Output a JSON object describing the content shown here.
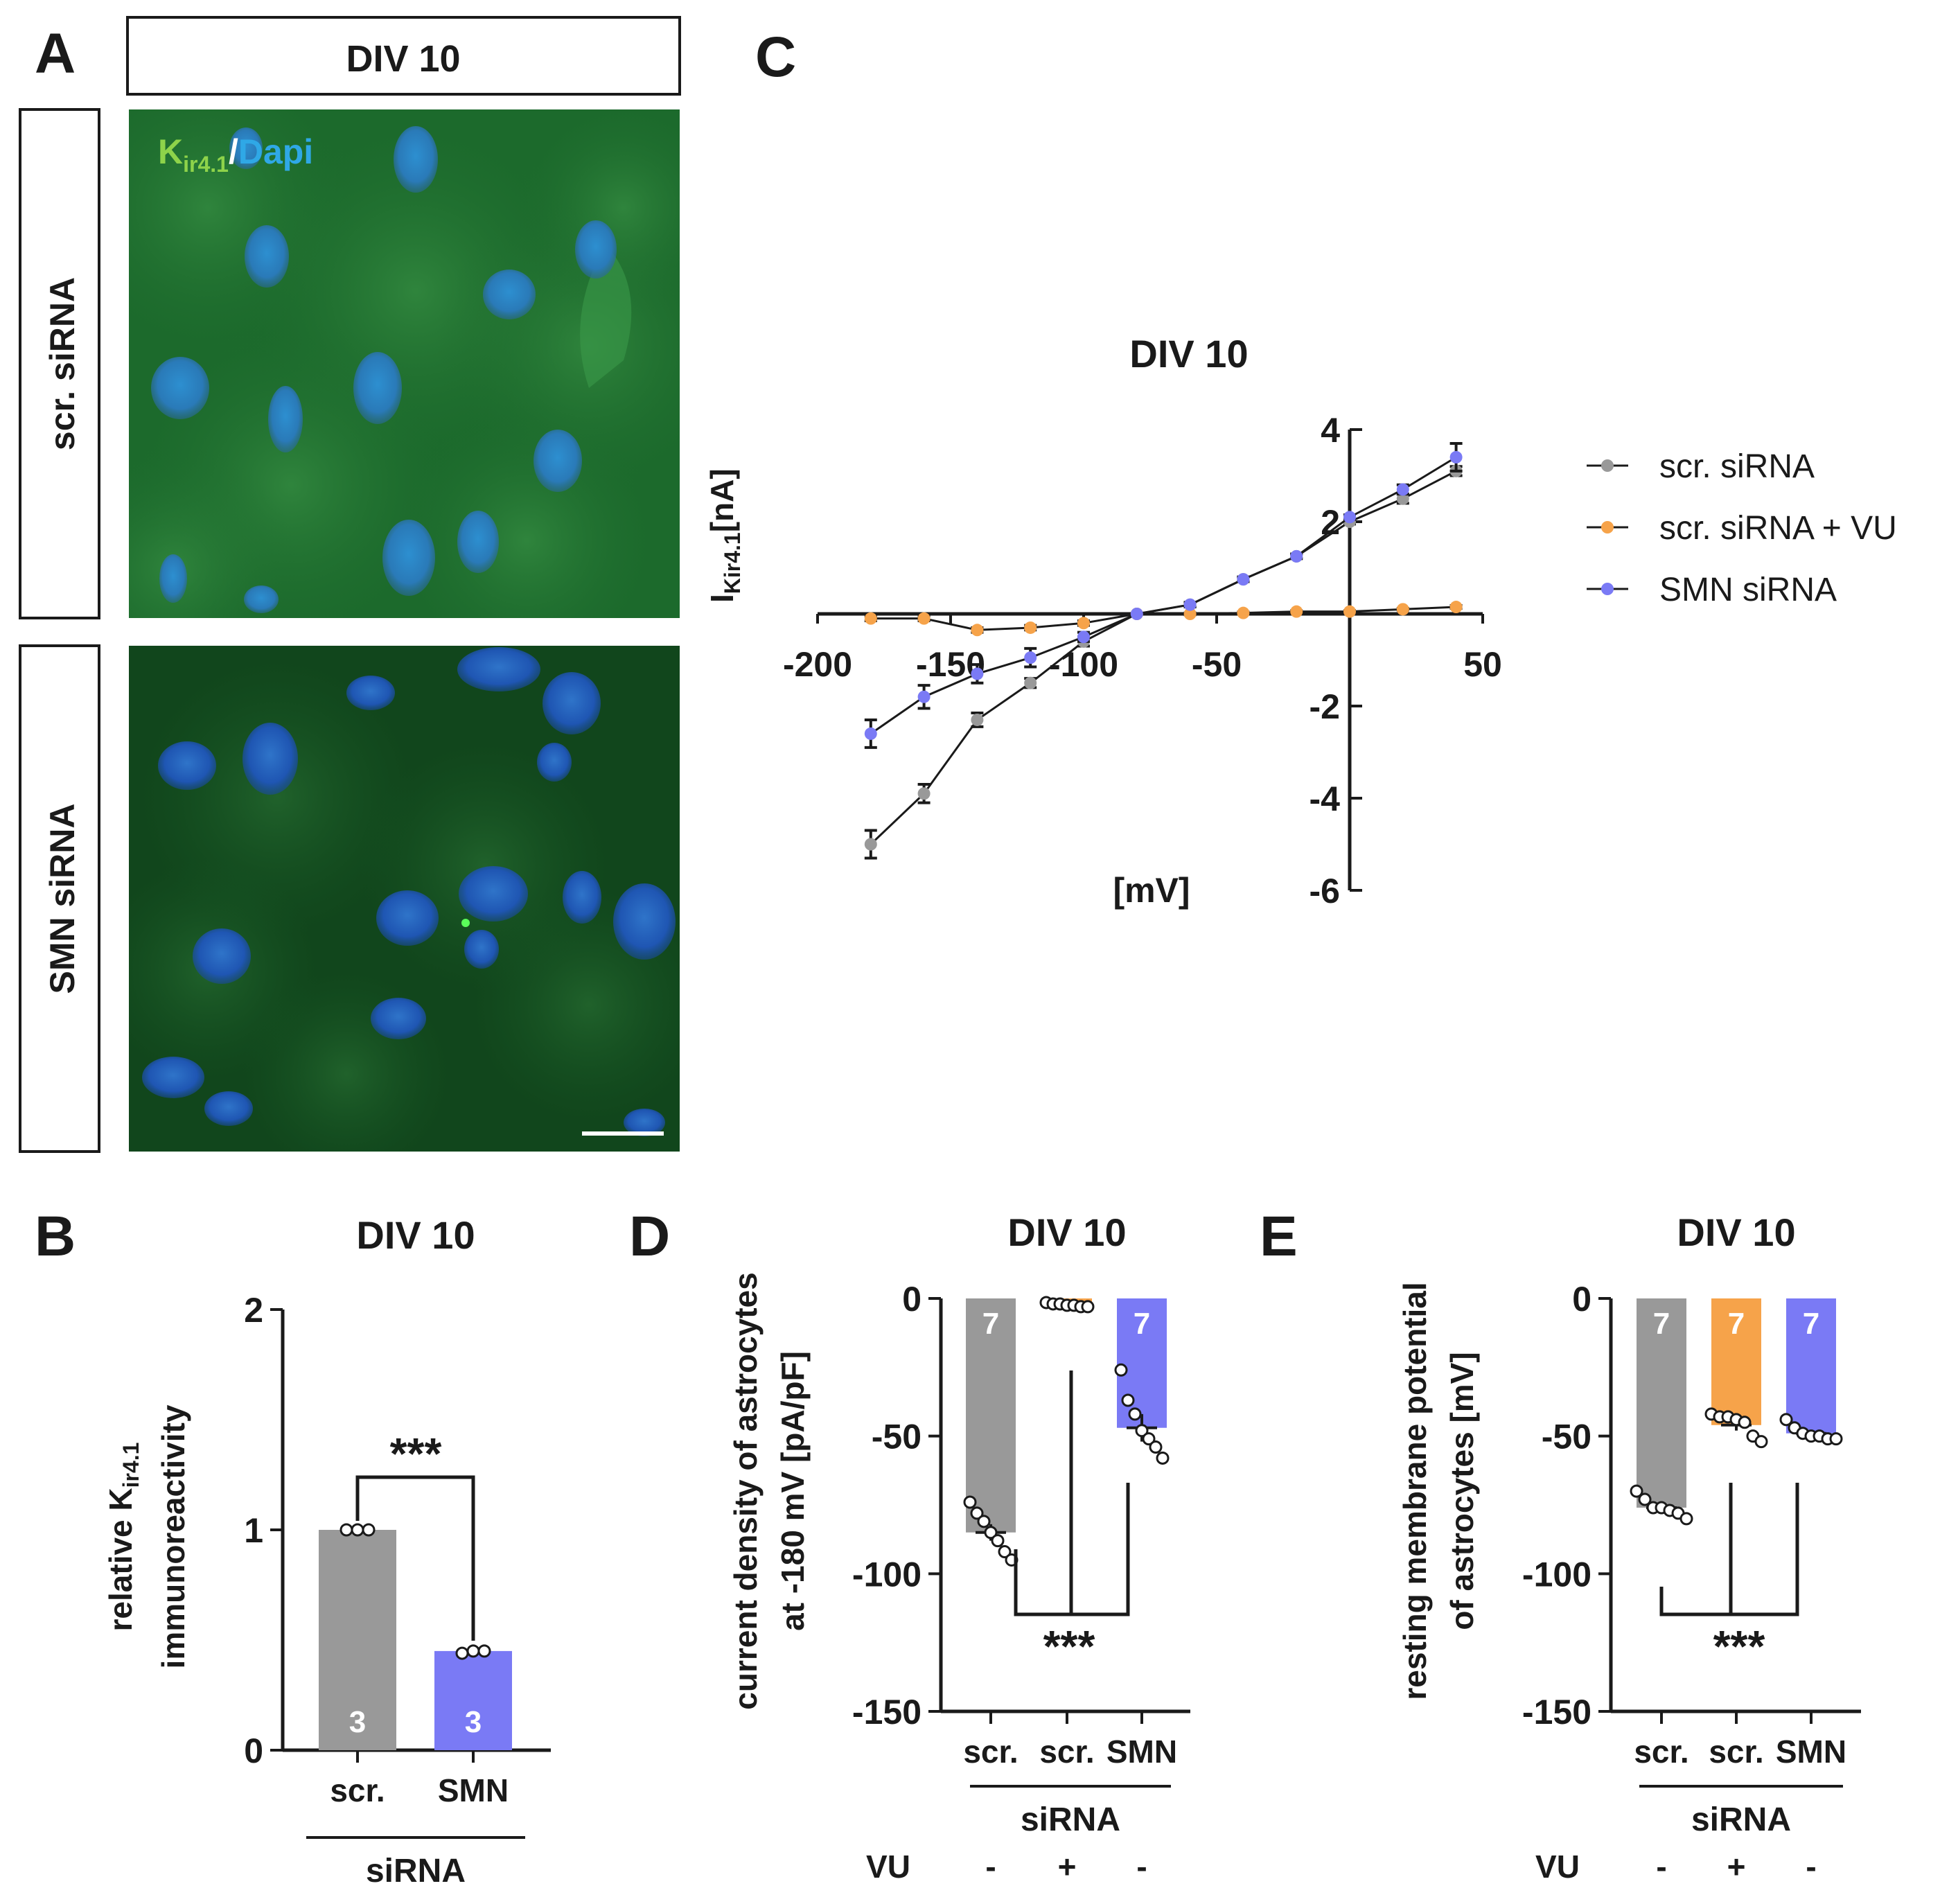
{
  "figure": {
    "panel_letters": [
      "A",
      "B",
      "C",
      "D",
      "E"
    ],
    "colors": {
      "scr": "#999999",
      "vu": "#f6a34a",
      "smn": "#7a7af5",
      "axis": "#1a1a1a"
    }
  },
  "panel_a": {
    "header": "DIV 10",
    "row_labels": [
      "scr. siRNA",
      "SMN siRNA"
    ],
    "stain_kir": "K",
    "stain_kir_sub": "ir4.1",
    "stain_sep": "/",
    "stain_dapi": "Dapi"
  },
  "chart_data": [
    {
      "id": "B",
      "type": "bar",
      "title": "DIV 10",
      "ylabel_main": "relative K",
      "ylabel_sub": "ir4.1",
      "ylabel_line2": "immunoreactivity",
      "categories": [
        "scr.",
        "SMN"
      ],
      "group_label": "siRNA",
      "values": [
        1.0,
        0.45
      ],
      "sem": [
        0.0,
        0.01
      ],
      "n": [
        "3",
        "3"
      ],
      "points": [
        [
          1.0,
          1.0,
          1.0
        ],
        [
          0.44,
          0.45,
          0.45
        ]
      ],
      "colors": [
        "#999999",
        "#7a7af5"
      ],
      "ylim": [
        0,
        2
      ],
      "yticks": [
        "0",
        "1",
        "2"
      ],
      "significance": "***"
    },
    {
      "id": "C",
      "type": "line",
      "title": "DIV 10",
      "ylabel_main": "I",
      "ylabel_sub": "Kir4.1",
      "ylabel_unit": "[nA]",
      "xlabel": "[mV]",
      "xlim": [
        -200,
        50
      ],
      "ylim": [
        -6,
        4
      ],
      "xticks": [
        "-200",
        "-150",
        "-100",
        "-50",
        "50"
      ],
      "yticks": [
        "4",
        "2",
        "-2",
        "-4",
        "-6"
      ],
      "x": [
        -180,
        -160,
        -140,
        -120,
        -100,
        -80,
        -60,
        -40,
        -20,
        0,
        20,
        40
      ],
      "series": [
        {
          "name": "scr. siRNA",
          "color": "#999999",
          "values": [
            -5.0,
            -3.9,
            -2.3,
            -1.5,
            -0.6,
            0.0,
            0.2,
            0.75,
            1.25,
            2.0,
            2.5,
            3.1
          ],
          "sem": [
            0.3,
            0.2,
            0.15,
            0.1,
            0.1,
            0.0,
            0.05,
            0.05,
            0.05,
            0.05,
            0.1,
            0.1
          ]
        },
        {
          "name": "scr. siRNA + VU",
          "color": "#f6a34a",
          "values": [
            -0.1,
            -0.1,
            -0.35,
            -0.3,
            -0.2,
            0.0,
            0.0,
            0.02,
            0.05,
            0.05,
            0.1,
            0.15
          ],
          "sem": [
            0.05,
            0.05,
            0.05,
            0.05,
            0.05,
            0.0,
            0.02,
            0.02,
            0.02,
            0.02,
            0.02,
            0.03
          ]
        },
        {
          "name": "SMN siRNA",
          "color": "#7a7af5",
          "values": [
            -2.6,
            -1.8,
            -1.3,
            -0.95,
            -0.5,
            0.0,
            0.2,
            0.75,
            1.25,
            2.1,
            2.7,
            3.4
          ],
          "sem": [
            0.3,
            0.25,
            0.2,
            0.2,
            0.1,
            0.0,
            0.05,
            0.05,
            0.05,
            0.05,
            0.1,
            0.3
          ]
        }
      ]
    },
    {
      "id": "D",
      "type": "bar",
      "title": "DIV 10",
      "ylabel_line1": "current density of astrocytes",
      "ylabel_line2": "at -180 mV [pA/pF]",
      "categories": [
        "scr.",
        "scr.",
        "SMN"
      ],
      "group_label": "siRNA",
      "vu_label": "VU",
      "vu": [
        "-",
        "+",
        "-"
      ],
      "values": [
        -85,
        -2,
        -47
      ],
      "sem": [
        3,
        0.5,
        5
      ],
      "n": [
        "7",
        "",
        "7"
      ],
      "points": [
        [
          -74,
          -78,
          -81,
          -85,
          -88,
          -92,
          -95
        ],
        [
          -1.5,
          -2,
          -2,
          -2.5,
          -2.5,
          -3,
          -3
        ],
        [
          -26,
          -37,
          -42,
          -48,
          -51,
          -54,
          -58
        ]
      ],
      "colors": [
        "#999999",
        "#f6a34a",
        "#7a7af5"
      ],
      "ylim": [
        -150,
        0
      ],
      "yticks": [
        "0",
        "-50",
        "-100",
        "-150"
      ],
      "significance": "***"
    },
    {
      "id": "E",
      "type": "bar",
      "title": "DIV 10",
      "ylabel_line1": "resting membrane potential",
      "ylabel_line2": "of astrocytes [mV]",
      "categories": [
        "scr.",
        "scr.",
        "SMN"
      ],
      "group_label": "siRNA",
      "vu_label": "VU",
      "vu": [
        "-",
        "+",
        "-"
      ],
      "values": [
        -76,
        -46,
        -49
      ],
      "sem": [
        1.5,
        2,
        1
      ],
      "n": [
        "7",
        "7",
        "7"
      ],
      "points": [
        [
          -70,
          -73,
          -76,
          -76,
          -77,
          -78,
          -80
        ],
        [
          -42,
          -43,
          -43,
          -44,
          -45,
          -50,
          -52
        ],
        [
          -44,
          -47,
          -49,
          -50,
          -50,
          -51,
          -51
        ]
      ],
      "colors": [
        "#999999",
        "#f6a34a",
        "#7a7af5"
      ],
      "ylim": [
        -150,
        0
      ],
      "yticks": [
        "0",
        "-50",
        "-100",
        "-150"
      ],
      "significance": "***"
    }
  ]
}
